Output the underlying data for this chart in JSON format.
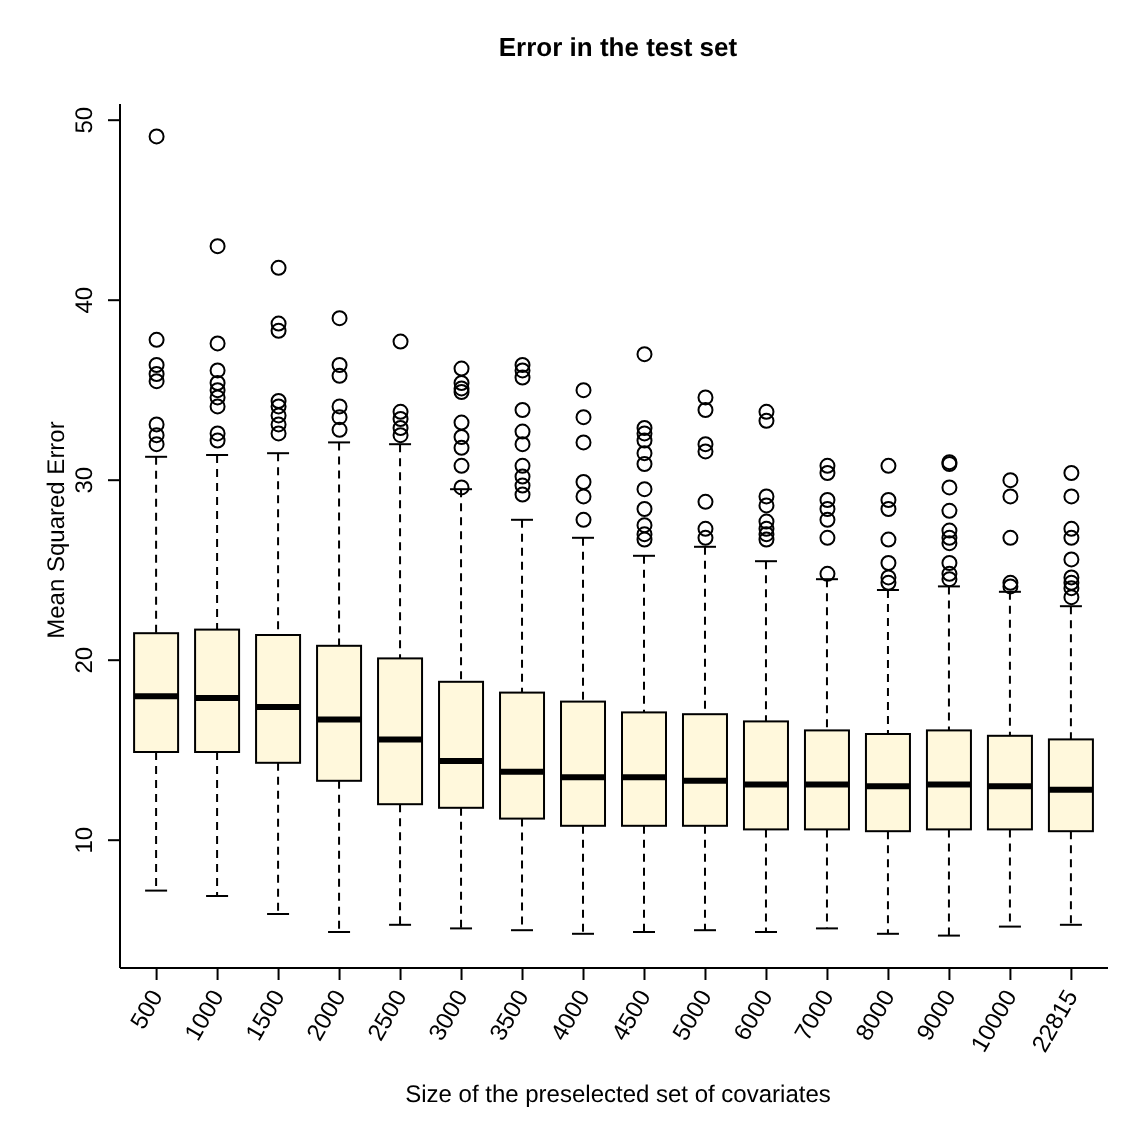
{
  "chart_data": {
    "type": "box",
    "title": "Error in the test set",
    "xlabel": "Size of the preselected set of covariates",
    "ylabel": "Mean Squared Error",
    "categories": [
      "500",
      "1000",
      "1500",
      "2000",
      "2500",
      "3000",
      "3500",
      "4000",
      "4500",
      "5000",
      "6000",
      "7000",
      "8000",
      "9000",
      "10000",
      "22815"
    ],
    "color": "#fff8dc",
    "ylim": [
      2.9,
      50.9
    ],
    "yticks": [
      10,
      20,
      30,
      40,
      50
    ],
    "grid": false,
    "marker": "circle",
    "boxes": [
      {
        "low": 7.2,
        "q1": 14.9,
        "median": 18.0,
        "q3": 21.5,
        "high": 31.3,
        "outliers": [
          49.1,
          37.8,
          36.4,
          35.9,
          35.5,
          33.1,
          32.5,
          32.0
        ]
      },
      {
        "low": 6.9,
        "q1": 14.9,
        "median": 17.9,
        "q3": 21.7,
        "high": 31.4,
        "outliers": [
          43.0,
          37.6,
          36.1,
          35.4,
          35.0,
          34.6,
          34.1,
          32.6,
          32.2
        ]
      },
      {
        "low": 5.9,
        "q1": 14.3,
        "median": 17.4,
        "q3": 21.4,
        "high": 31.5,
        "outliers": [
          41.8,
          38.7,
          38.3,
          34.4,
          34.1,
          33.6,
          33.1,
          32.6
        ]
      },
      {
        "low": 4.9,
        "q1": 13.3,
        "median": 16.7,
        "q3": 20.8,
        "high": 32.1,
        "outliers": [
          39.0,
          36.4,
          35.8,
          34.1,
          33.5,
          32.8
        ]
      },
      {
        "low": 5.3,
        "q1": 12.0,
        "median": 15.6,
        "q3": 20.1,
        "high": 32.0,
        "outliers": [
          37.7,
          33.8,
          33.4,
          32.9,
          32.5
        ]
      },
      {
        "low": 5.1,
        "q1": 11.8,
        "median": 14.4,
        "q3": 18.8,
        "high": 29.5,
        "outliers": [
          36.2,
          35.4,
          35.1,
          34.9,
          33.2,
          32.4,
          31.8,
          30.8,
          29.6
        ]
      },
      {
        "low": 5.0,
        "q1": 11.2,
        "median": 13.8,
        "q3": 18.2,
        "high": 27.8,
        "outliers": [
          36.4,
          36.1,
          35.7,
          33.9,
          32.7,
          32.0,
          30.8,
          30.2,
          29.7,
          29.2
        ]
      },
      {
        "low": 4.8,
        "q1": 10.8,
        "median": 13.5,
        "q3": 17.7,
        "high": 26.8,
        "outliers": [
          35.0,
          33.5,
          32.1,
          29.9,
          29.1,
          27.8
        ]
      },
      {
        "low": 4.9,
        "q1": 10.8,
        "median": 13.5,
        "q3": 17.1,
        "high": 25.8,
        "outliers": [
          37.0,
          32.9,
          32.6,
          32.2,
          31.5,
          30.9,
          29.5,
          28.4,
          27.5,
          27.0,
          26.7
        ]
      },
      {
        "low": 5.0,
        "q1": 10.8,
        "median": 13.3,
        "q3": 17.0,
        "high": 26.3,
        "outliers": [
          34.6,
          33.9,
          32.0,
          31.6,
          28.8,
          27.3,
          26.8
        ]
      },
      {
        "low": 4.9,
        "q1": 10.6,
        "median": 13.1,
        "q3": 16.6,
        "high": 25.5,
        "outliers": [
          33.8,
          33.3,
          29.1,
          28.6,
          27.7,
          27.3,
          27.0,
          26.7
        ]
      },
      {
        "low": 5.1,
        "q1": 10.6,
        "median": 13.1,
        "q3": 16.1,
        "high": 24.5,
        "outliers": [
          30.8,
          30.4,
          28.9,
          28.4,
          27.8,
          26.8,
          24.8
        ]
      },
      {
        "low": 4.8,
        "q1": 10.5,
        "median": 13.0,
        "q3": 15.9,
        "high": 23.9,
        "outliers": [
          30.8,
          28.9,
          28.4,
          26.7,
          25.4,
          24.6,
          24.3
        ]
      },
      {
        "low": 4.7,
        "q1": 10.6,
        "median": 13.1,
        "q3": 16.1,
        "high": 24.1,
        "outliers": [
          31.0,
          30.9,
          29.6,
          28.3,
          27.2,
          26.8,
          26.5,
          25.4,
          24.8,
          24.5
        ]
      },
      {
        "low": 5.2,
        "q1": 10.6,
        "median": 13.0,
        "q3": 15.8,
        "high": 23.8,
        "outliers": [
          30.0,
          29.1,
          26.8,
          24.3,
          24.1
        ]
      },
      {
        "low": 5.3,
        "q1": 10.5,
        "median": 12.8,
        "q3": 15.6,
        "high": 23.0,
        "outliers": [
          30.4,
          29.1,
          27.3,
          26.8,
          25.6,
          24.6,
          24.3,
          24.0,
          23.5
        ]
      }
    ]
  }
}
